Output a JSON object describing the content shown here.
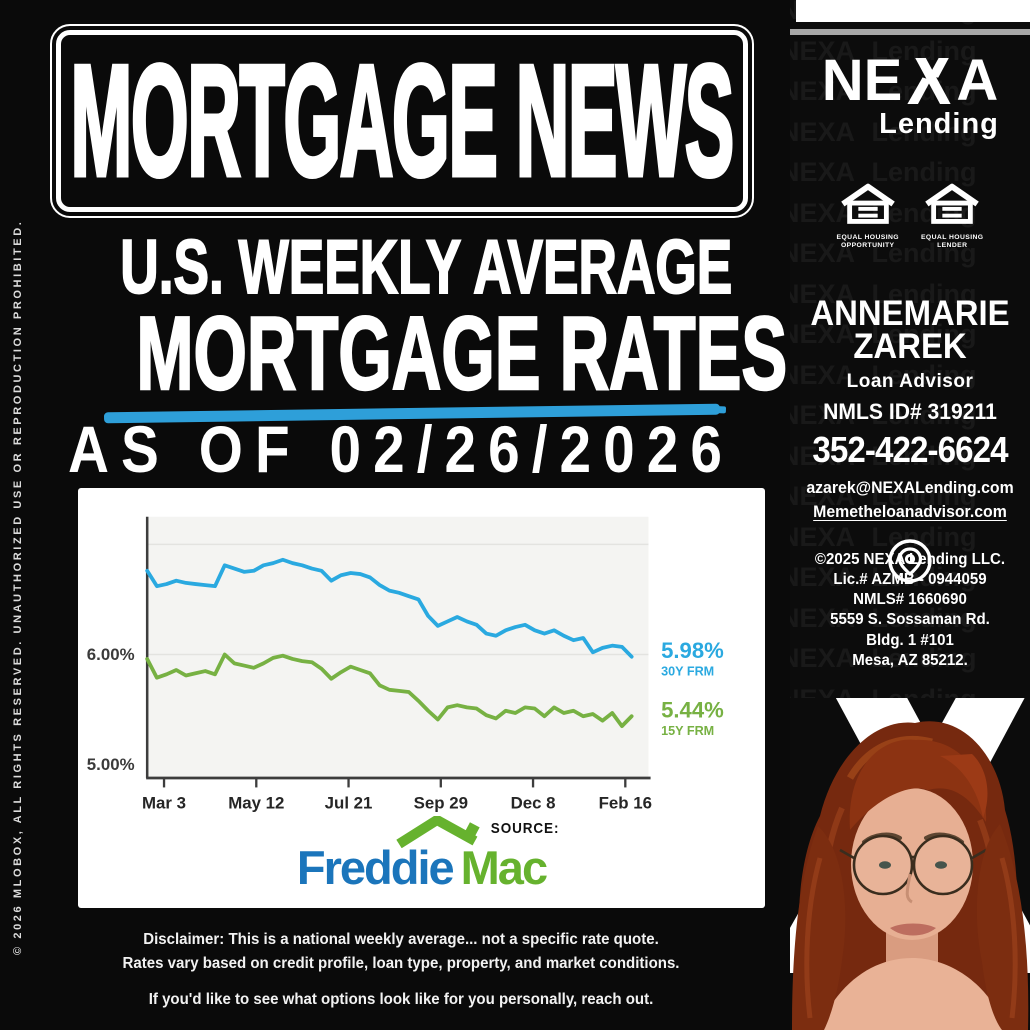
{
  "colors": {
    "accent_blue": "#2E9FD9",
    "freddie_blue": "#1B75BB",
    "freddie_green": "#66B22E",
    "line_blue": "#2AA9E0",
    "line_green": "#77B143"
  },
  "sidebar": {
    "copyright": "© 2026 MLOBOX, ALL RIGHTS RESERVED. UNAUTHORIZED USE OR REPRODUCTION PROHIBITED."
  },
  "header": {
    "banner": "MORTGAGE NEWS",
    "subtitle_line1": "U.S. WEEKLY AVERAGE",
    "subtitle_line2": "MORTGAGE RATES",
    "as_of": "AS OF 02/26/2026"
  },
  "chart_data": {
    "type": "line",
    "x_tick_labels": [
      "Mar 3",
      "May 12",
      "Jul 21",
      "Sep 29",
      "Dec 8",
      "Feb 16"
    ],
    "x_tick_indices": [
      0,
      10,
      20,
      30,
      40,
      50
    ],
    "y_ticks": [
      6.0,
      5.0
    ],
    "y_tick_labels": [
      "6.00%",
      "5.00%"
    ],
    "ylim": [
      4.88,
      7.04
    ],
    "grid_values": [
      6.0,
      7.0
    ],
    "legend_position": "right-of-line-ends",
    "series": [
      {
        "name": "30Y FRM",
        "end_label": "5.98%",
        "color": "#2AA9E0",
        "values": [
          6.76,
          6.62,
          6.64,
          6.67,
          6.65,
          6.64,
          6.63,
          6.62,
          6.81,
          6.78,
          6.75,
          6.76,
          6.81,
          6.83,
          6.86,
          6.83,
          6.81,
          6.78,
          6.76,
          6.67,
          6.72,
          6.74,
          6.73,
          6.7,
          6.63,
          6.58,
          6.56,
          6.53,
          6.5,
          6.35,
          6.26,
          6.3,
          6.34,
          6.3,
          6.27,
          6.19,
          6.17,
          6.22,
          6.25,
          6.27,
          6.22,
          6.19,
          6.22,
          6.17,
          6.13,
          6.15,
          6.02,
          6.06,
          6.08,
          6.07,
          5.98
        ]
      },
      {
        "name": "15Y FRM",
        "end_label": "5.44%",
        "color": "#77B143",
        "values": [
          5.96,
          5.79,
          5.82,
          5.86,
          5.81,
          5.83,
          5.85,
          5.82,
          6.0,
          5.92,
          5.9,
          5.88,
          5.92,
          5.97,
          5.99,
          5.96,
          5.94,
          5.93,
          5.87,
          5.78,
          5.84,
          5.89,
          5.86,
          5.83,
          5.72,
          5.68,
          5.67,
          5.66,
          5.58,
          5.49,
          5.41,
          5.52,
          5.54,
          5.52,
          5.51,
          5.45,
          5.42,
          5.49,
          5.47,
          5.52,
          5.51,
          5.44,
          5.52,
          5.47,
          5.49,
          5.44,
          5.46,
          5.4,
          5.47,
          5.35,
          5.44
        ]
      }
    ]
  },
  "source": {
    "label": "SOURCE:",
    "brand_blue": "Freddie",
    "brand_green": "Mac"
  },
  "disclaimer": {
    "line1": "Disclaimer: This is a national weekly average... not a specific rate quote.",
    "line2": "Rates vary based on credit profile, loan type, property, and market conditions.",
    "line3": "If you'd like to see what options look like for you personally, reach out."
  },
  "right_panel": {
    "watermark_text": "NEXA Lending",
    "brand": {
      "prefix": "NE",
      "suffix": "A",
      "sub": "Lending"
    },
    "equal_housing": [
      {
        "line1": "EQUAL HOUSING",
        "line2": "OPPORTUNITY"
      },
      {
        "line1": "EQUAL HOUSING",
        "line2": "LENDER"
      }
    ],
    "advisor": {
      "name_line1": "ANNEMARIE",
      "name_line2": "ZAREK",
      "title": "Loan Advisor",
      "nmls": "NMLS ID# 319211",
      "phone": "352-422-6624",
      "email": "azarek@NEXALending.com",
      "website": "Memetheloanadvisor.com"
    },
    "company_lines": [
      "©2025 NEXA Lending LLC.",
      "Lic.# AZMB - 0944059",
      "NMLS# 1660690",
      "5559 S. Sossaman Rd.",
      "Bldg. 1 #101",
      "Mesa, AZ 85212."
    ]
  }
}
